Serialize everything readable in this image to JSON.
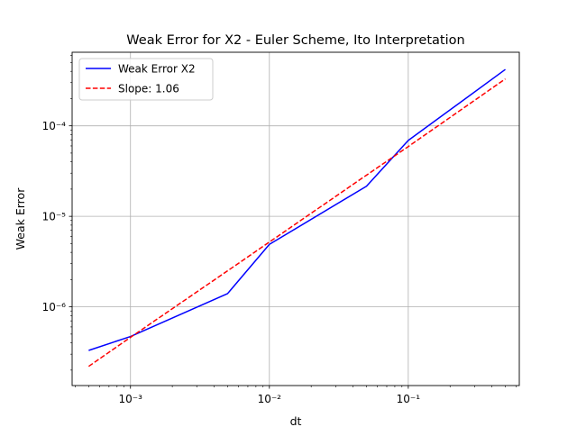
{
  "chart_data": {
    "type": "line",
    "title": "Weak Error for X2 - Euler Scheme, Ito Interpretation",
    "xlabel": "dt",
    "ylabel": "Weak Error",
    "xscale": "log",
    "yscale": "log",
    "xlim": [
      0.00038,
      0.63
    ],
    "ylim": [
      1.35e-07,
      0.00065
    ],
    "grid": true,
    "legend_position": "upper-left",
    "x_ticks": [
      {
        "value": 0.001,
        "label": "10⁻³"
      },
      {
        "value": 0.01,
        "label": "10⁻²"
      },
      {
        "value": 0.1,
        "label": "10⁻¹"
      }
    ],
    "y_ticks": [
      {
        "value": 1e-06,
        "label": "10⁻⁶"
      },
      {
        "value": 1e-05,
        "label": "10⁻⁵"
      },
      {
        "value": 0.0001,
        "label": "10⁻⁴"
      }
    ],
    "series": [
      {
        "name": "Weak Error X2",
        "color": "#0000ff",
        "style": "solid",
        "x": [
          0.0005,
          0.001,
          0.005,
          0.01,
          0.05,
          0.1,
          0.5
        ],
        "y": [
          3.3e-07,
          4.7e-07,
          1.4e-06,
          4.9e-06,
          2.15e-05,
          6.9e-05,
          0.00042
        ]
      },
      {
        "name": "Slope: 1.06",
        "color": "#ff0000",
        "style": "dashed",
        "x": [
          0.0005,
          0.001,
          0.005,
          0.01,
          0.05,
          0.1,
          0.5
        ],
        "y": [
          2.2e-07,
          4.6e-07,
          2.5e-06,
          5.2e-06,
          2.85e-05,
          5.9e-05,
          0.00033
        ]
      }
    ]
  }
}
